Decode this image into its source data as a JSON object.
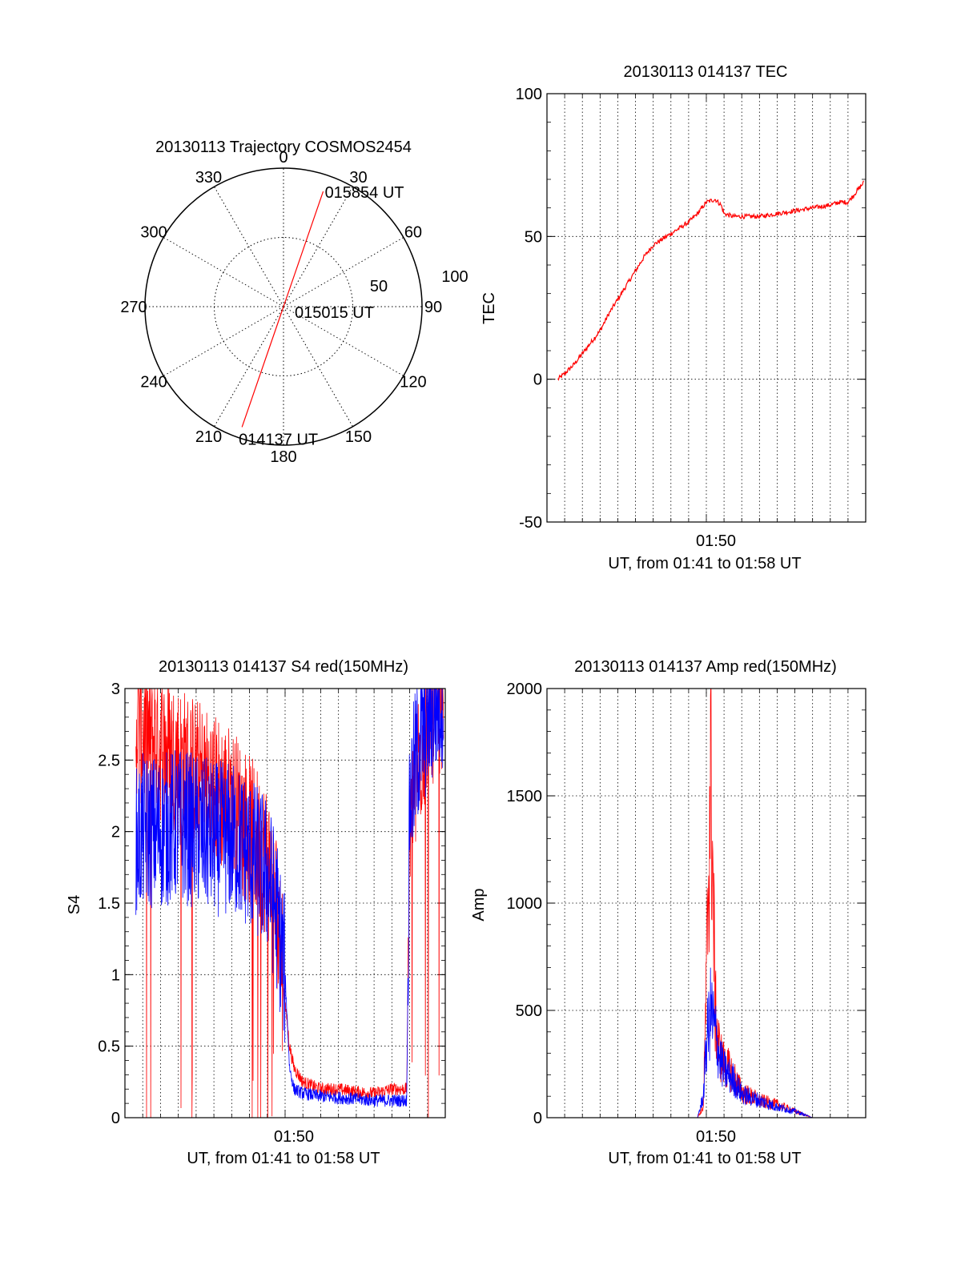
{
  "colors": {
    "red": "#ff0000",
    "blue": "#0000ff",
    "axis": "#000000",
    "grid": "#000000"
  },
  "chart_data": [
    {
      "id": "trajectory",
      "type": "polar",
      "title": "20130113 Trajectory COSMOS2454",
      "angle_ticks": [
        "0",
        "30",
        "60",
        "90",
        "120",
        "150",
        "180",
        "210",
        "240",
        "270",
        "300",
        "330"
      ],
      "radius_labels": [
        "50",
        "100"
      ],
      "rmax": 100,
      "grid": true,
      "series": [
        {
          "color": "#ff0000",
          "points": [
            {
              "az": 19,
              "r": 88
            },
            {
              "az": 0,
              "r": 0
            },
            {
              "az": 199,
              "r": 92
            }
          ]
        }
      ],
      "annotations": [
        {
          "text": "015854 UT",
          "az": 19,
          "r": 88
        },
        {
          "text": "015015 UT",
          "az": 0,
          "r": 0
        },
        {
          "text": "014137 UT",
          "az": 199,
          "r": 92
        }
      ]
    },
    {
      "id": "tec",
      "type": "line",
      "title": "20130113 014137 TEC",
      "xlabel": "UT, from 01:41 to 01:58 UT",
      "ylabel": "TEC",
      "x_tick_label": "01:50",
      "xlim": [
        "01:41:00",
        "01:59:00"
      ],
      "ylim": [
        -50,
        100
      ],
      "y_ticks": [
        "-50",
        "0",
        "50",
        "100"
      ],
      "grid": true,
      "series": [
        {
          "color": "#ff0000",
          "x": [
            "01:41:37",
            "01:42:00",
            "01:42:30",
            "01:43:00",
            "01:43:30",
            "01:44:00",
            "01:44:30",
            "01:45:00",
            "01:45:30",
            "01:46:00",
            "01:46:30",
            "01:47:00",
            "01:47:30",
            "01:48:00",
            "01:48:30",
            "01:49:00",
            "01:49:30",
            "01:50:00",
            "01:50:30",
            "01:50:50",
            "01:51:00",
            "01:51:30",
            "01:52:00",
            "01:53:00",
            "01:54:00",
            "01:55:00",
            "01:56:00",
            "01:57:00",
            "01:57:30",
            "01:58:00",
            "01:58:54"
          ],
          "y": [
            0,
            2,
            5,
            9,
            13,
            17,
            23,
            28,
            33,
            38,
            43,
            47,
            49,
            51,
            53,
            55,
            58,
            62,
            63,
            61,
            58,
            57,
            57,
            57,
            58,
            59,
            60,
            61,
            62,
            62,
            69
          ]
        }
      ]
    },
    {
      "id": "s4",
      "type": "line",
      "title": "20130113 014137 S4 red(150MHz)",
      "xlabel": "UT, from 01:41 to 01:58 UT",
      "ylabel": "S4",
      "x_tick_label": "01:50",
      "xlim": [
        "01:41:00",
        "01:59:00"
      ],
      "ylim": [
        0,
        3
      ],
      "y_ticks": [
        "0",
        "0.5",
        "1",
        "1.5",
        "2",
        "2.5",
        "3"
      ],
      "grid": true,
      "series": [
        {
          "color": "#ff0000",
          "x": [
            "01:41:37",
            "01:42:00",
            "01:43:00",
            "01:44:00",
            "01:45:00",
            "01:46:00",
            "01:47:00",
            "01:48:00",
            "01:49:00",
            "01:49:30",
            "01:50:00",
            "01:50:15",
            "01:50:30",
            "01:51:00",
            "01:52:00",
            "01:53:00",
            "01:54:00",
            "01:55:00",
            "01:56:00",
            "01:56:50",
            "01:57:00",
            "01:57:30",
            "01:58:00",
            "01:58:54"
          ],
          "y": [
            2.8,
            2.7,
            2.6,
            2.5,
            2.4,
            2.3,
            2.2,
            2.0,
            1.8,
            1.5,
            0.8,
            0.5,
            0.35,
            0.25,
            0.2,
            0.2,
            0.18,
            0.17,
            0.2,
            0.2,
            2.0,
            2.5,
            2.8,
            3.0
          ]
        },
        {
          "color": "#0000ff",
          "x": [
            "01:41:37",
            "01:42:00",
            "01:43:00",
            "01:44:00",
            "01:45:00",
            "01:46:00",
            "01:47:00",
            "01:48:00",
            "01:49:00",
            "01:49:30",
            "01:50:00",
            "01:50:15",
            "01:50:30",
            "01:51:00",
            "01:52:00",
            "01:53:00",
            "01:54:00",
            "01:55:00",
            "01:56:00",
            "01:56:50",
            "01:57:00",
            "01:57:30",
            "01:58:00",
            "01:58:54"
          ],
          "y": [
            1.9,
            2.0,
            2.0,
            2.05,
            2.0,
            1.95,
            1.95,
            1.85,
            1.7,
            1.45,
            1.0,
            0.35,
            0.2,
            0.17,
            0.15,
            0.14,
            0.13,
            0.12,
            0.12,
            0.12,
            2.2,
            2.6,
            2.8,
            3.0
          ]
        }
      ]
    },
    {
      "id": "amp",
      "type": "line",
      "title": "20130113 014137 Amp red(150MHz)",
      "xlabel": "UT, from 01:41 to 01:58 UT",
      "ylabel": "Amp",
      "x_tick_label": "01:50",
      "xlim": [
        "01:41:00",
        "01:59:00"
      ],
      "ylim": [
        0,
        2000
      ],
      "y_ticks": [
        "0",
        "500",
        "1000",
        "1500",
        "2000"
      ],
      "grid": true,
      "series": [
        {
          "color": "#ff0000",
          "x": [
            "01:41:37",
            "01:49:30",
            "01:49:50",
            "01:50:00",
            "01:50:15",
            "01:50:30",
            "01:50:45",
            "01:51:00",
            "01:51:30",
            "01:52:00",
            "01:53:00",
            "01:54:00",
            "01:55:00",
            "01:56:00",
            "01:58:54"
          ],
          "y": [
            0,
            0,
            50,
            600,
            1690,
            500,
            300,
            250,
            200,
            120,
            80,
            60,
            30,
            0,
            0
          ]
        },
        {
          "color": "#0000ff",
          "x": [
            "01:41:37",
            "01:49:30",
            "01:49:50",
            "01:50:00",
            "01:50:15",
            "01:50:30",
            "01:50:45",
            "01:51:00",
            "01:51:30",
            "01:52:00",
            "01:53:00",
            "01:54:00",
            "01:55:00",
            "01:56:00",
            "01:58:54"
          ],
          "y": [
            0,
            0,
            100,
            350,
            500,
            400,
            280,
            220,
            180,
            110,
            80,
            50,
            30,
            0,
            0
          ]
        }
      ]
    }
  ]
}
